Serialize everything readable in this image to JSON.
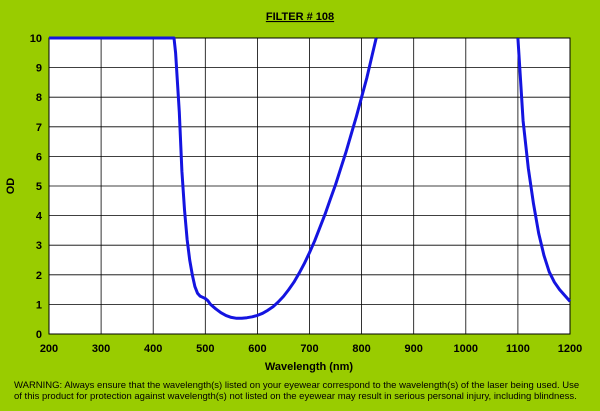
{
  "chart_data": {
    "type": "line",
    "title": "FILTER # 108",
    "xlabel": "Wavelength (nm)",
    "ylabel": "OD",
    "xlim": [
      200,
      1200
    ],
    "ylim": [
      0,
      10
    ],
    "xticks": [
      "200",
      "300",
      "400",
      "500",
      "600",
      "700",
      "800",
      "900",
      "1000",
      "1100",
      "1200"
    ],
    "yticks": [
      "0",
      "1",
      "2",
      "3",
      "4",
      "5",
      "6",
      "7",
      "8",
      "9",
      "10"
    ],
    "grid": true,
    "line_color": "#1414e0",
    "plot_background": "#ffffff",
    "series": [
      {
        "segments": [
          [
            [
              200,
              10
            ],
            [
              440,
              10
            ],
            [
              443,
              9.5
            ],
            [
              450,
              7.5
            ],
            [
              455,
              5.5
            ],
            [
              460,
              4.2
            ],
            [
              465,
              3.2
            ],
            [
              470,
              2.5
            ],
            [
              475,
              2.0
            ],
            [
              480,
              1.6
            ],
            [
              485,
              1.38
            ],
            [
              490,
              1.28
            ],
            [
              495,
              1.24
            ],
            [
              500,
              1.2
            ],
            [
              505,
              1.12
            ],
            [
              510,
              1.0
            ],
            [
              520,
              0.85
            ],
            [
              530,
              0.72
            ],
            [
              540,
              0.62
            ],
            [
              550,
              0.56
            ],
            [
              560,
              0.53
            ],
            [
              570,
              0.53
            ],
            [
              580,
              0.55
            ],
            [
              590,
              0.58
            ],
            [
              600,
              0.63
            ],
            [
              610,
              0.7
            ],
            [
              620,
              0.8
            ],
            [
              630,
              0.92
            ],
            [
              640,
              1.08
            ],
            [
              650,
              1.27
            ],
            [
              660,
              1.5
            ],
            [
              670,
              1.75
            ],
            [
              680,
              2.05
            ],
            [
              690,
              2.38
            ],
            [
              700,
              2.75
            ],
            [
              710,
              3.15
            ],
            [
              720,
              3.6
            ],
            [
              730,
              4.05
            ],
            [
              740,
              4.55
            ],
            [
              750,
              5.05
            ],
            [
              760,
              5.6
            ],
            [
              770,
              6.15
            ],
            [
              780,
              6.75
            ],
            [
              790,
              7.35
            ],
            [
              800,
              8.0
            ],
            [
              810,
              8.65
            ],
            [
              820,
              9.4
            ],
            [
              828,
              10
            ]
          ],
          [
            [
              1100,
              10
            ],
            [
              1105,
              8.6
            ],
            [
              1110,
              7.2
            ],
            [
              1120,
              5.6
            ],
            [
              1130,
              4.4
            ],
            [
              1140,
              3.4
            ],
            [
              1150,
              2.65
            ],
            [
              1160,
              2.1
            ],
            [
              1170,
              1.75
            ],
            [
              1180,
              1.5
            ],
            [
              1190,
              1.3
            ],
            [
              1200,
              1.1
            ]
          ]
        ]
      }
    ]
  },
  "footer": {
    "warning": "WARNING:  Always ensure that the wavelength(s)  listed on your eyewear  correspond to the wavelength(s)  of the laser being used. Use of this product for protection against wavelength(s) not listed on the eyewear  may result in serious personal injury, including blindness."
  }
}
